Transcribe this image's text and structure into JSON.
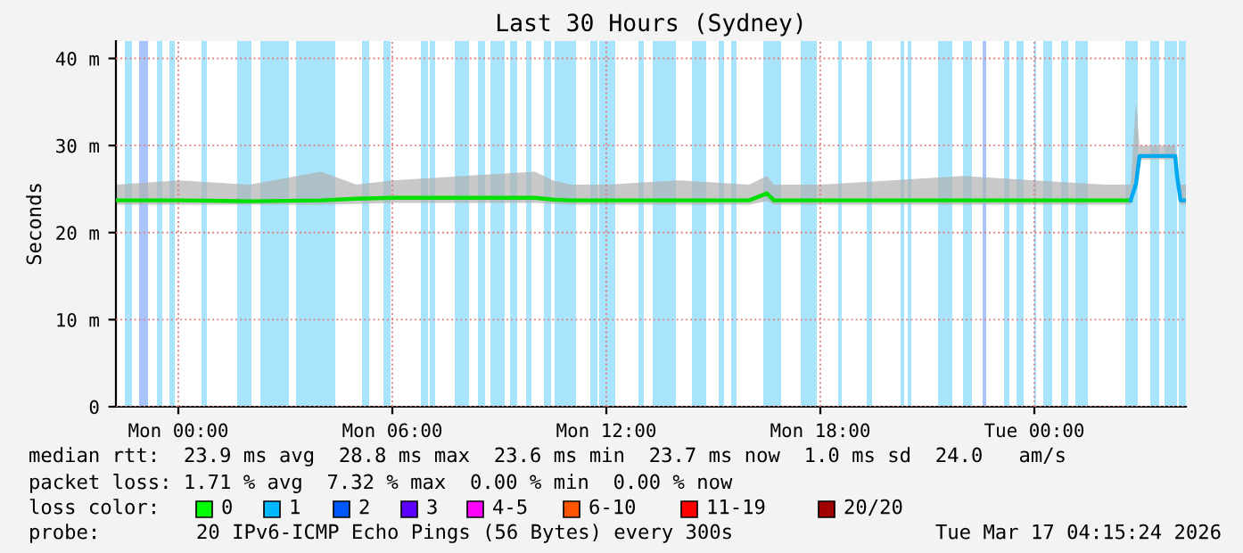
{
  "chart_data": {
    "type": "line",
    "title": "Last 30 Hours (Sydney)",
    "ylabel": "Seconds",
    "xlim": [
      "2026-03-15T22:15",
      "2026-03-17T04:15"
    ],
    "xticks": [
      {
        "value": "2026-03-16T00:00",
        "label": "Mon 00:00"
      },
      {
        "value": "2026-03-16T06:00",
        "label": "Mon 06:00"
      },
      {
        "value": "2026-03-16T12:00",
        "label": "Mon 12:00"
      },
      {
        "value": "2026-03-16T18:00",
        "label": "Mon 18:00"
      },
      {
        "value": "2026-03-17T00:00",
        "label": "Tue 00:00"
      }
    ],
    "ylim": [
      0,
      42
    ],
    "yticks": [
      0,
      {
        "value": 10,
        "label": "10 m"
      },
      {
        "value": 20,
        "label": "20 m"
      },
      {
        "value": 30,
        "label": "30 m"
      },
      {
        "value": 40,
        "label": "40 m"
      }
    ],
    "grid": true,
    "series": [
      {
        "color": "#00e000",
        "x": [
          "2026-03-15T22:15",
          "2026-03-16T00:00",
          "2026-03-16T02:00",
          "2026-03-16T04:00",
          "2026-03-16T05:00",
          "2026-03-16T06:00",
          "2026-03-16T08:00",
          "2026-03-16T10:00",
          "2026-03-16T10:30",
          "2026-03-16T11:00",
          "2026-03-16T12:00",
          "2026-03-16T14:00",
          "2026-03-16T16:00",
          "2026-03-16T16:30",
          "2026-03-16T16:42",
          "2026-03-16T18:00",
          "2026-03-16T20:00",
          "2026-03-16T22:00",
          "2026-03-17T00:00",
          "2026-03-17T02:00",
          "2026-03-17T02:42"
        ],
        "values": [
          23.7,
          23.7,
          23.6,
          23.7,
          23.9,
          24.0,
          24.0,
          24.0,
          23.8,
          23.7,
          23.7,
          23.7,
          23.7,
          24.5,
          23.7,
          23.7,
          23.7,
          23.7,
          23.7,
          23.7,
          23.7
        ],
        "lower": [
          23.2,
          23.2,
          23.2,
          23.2,
          23.3,
          23.4,
          23.4,
          23.4,
          23.3,
          23.2,
          23.2,
          23.2,
          23.2,
          23.6,
          23.2,
          23.2,
          23.2,
          23.2,
          23.2,
          23.2,
          23.2
        ],
        "upper": [
          25.5,
          26.0,
          25.5,
          27.0,
          25.5,
          26.0,
          26.5,
          27.0,
          26.0,
          25.5,
          25.5,
          26.0,
          25.5,
          26.5,
          25.5,
          25.5,
          26.0,
          26.5,
          26.0,
          25.5,
          25.5
        ]
      },
      {
        "color": "#00a8f0",
        "x": [
          "2026-03-17T02:42",
          "2026-03-17T02:51",
          "2026-03-17T02:57",
          "2026-03-17T03:30",
          "2026-03-17T03:57",
          "2026-03-17T04:00",
          "2026-03-17T04:06",
          "2026-03-17T04:15"
        ],
        "values": [
          23.7,
          25.6,
          28.8,
          28.8,
          28.8,
          26.5,
          23.7,
          23.7
        ],
        "lower": [
          23.2,
          25.0,
          28.4,
          28.4,
          28.4,
          26.0,
          23.2,
          23.2
        ],
        "upper": [
          25.5,
          35.0,
          30.0,
          30.0,
          30.0,
          28.0,
          25.5,
          25.5
        ]
      }
    ],
    "bands": [
      {
        "axis": "x",
        "from": "2026-03-15T22:30",
        "to": "2026-03-15T22:42",
        "color": "#a8e4fb"
      },
      {
        "axis": "x",
        "from": "2026-03-15T22:54",
        "to": "2026-03-15T23:09",
        "color": "#a8c4fb"
      },
      {
        "axis": "x",
        "from": "2026-03-15T23:24",
        "to": "2026-03-15T23:33",
        "color": "#a8e4fb"
      },
      {
        "axis": "x",
        "from": "2026-03-15T23:45",
        "to": "2026-03-15T23:54",
        "color": "#a8e4fb"
      },
      {
        "axis": "x",
        "from": "2026-03-16T00:39",
        "to": "2026-03-16T00:48",
        "color": "#a8e4fb"
      },
      {
        "axis": "x",
        "from": "2026-03-16T01:39",
        "to": "2026-03-16T02:03",
        "color": "#a8e4fb"
      },
      {
        "axis": "x",
        "from": "2026-03-16T02:18",
        "to": "2026-03-16T03:06",
        "color": "#a8e4fb"
      },
      {
        "axis": "x",
        "from": "2026-03-16T03:18",
        "to": "2026-03-16T04:24",
        "color": "#a8e4fb"
      },
      {
        "axis": "x",
        "from": "2026-03-16T05:09",
        "to": "2026-03-16T05:21",
        "color": "#a8e4fb"
      },
      {
        "axis": "x",
        "from": "2026-03-16T05:45",
        "to": "2026-03-16T05:57",
        "color": "#a8e4fb"
      },
      {
        "axis": "x",
        "from": "2026-03-16T06:48",
        "to": "2026-03-16T07:00",
        "color": "#a8e4fb"
      },
      {
        "axis": "x",
        "from": "2026-03-16T07:03",
        "to": "2026-03-16T07:12",
        "color": "#a8e4fb"
      },
      {
        "axis": "x",
        "from": "2026-03-16T07:45",
        "to": "2026-03-16T08:09",
        "color": "#a8e4fb"
      },
      {
        "axis": "x",
        "from": "2026-03-16T08:24",
        "to": "2026-03-16T08:36",
        "color": "#a8e4fb"
      },
      {
        "axis": "x",
        "from": "2026-03-16T08:45",
        "to": "2026-03-16T09:09",
        "color": "#a8e4fb"
      },
      {
        "axis": "x",
        "from": "2026-03-16T09:18",
        "to": "2026-03-16T09:30",
        "color": "#a8e4fb"
      },
      {
        "axis": "x",
        "from": "2026-03-16T09:45",
        "to": "2026-03-16T09:54",
        "color": "#a8e4fb"
      },
      {
        "axis": "x",
        "from": "2026-03-16T10:15",
        "to": "2026-03-16T10:27",
        "color": "#a8e4fb"
      },
      {
        "axis": "x",
        "from": "2026-03-16T10:33",
        "to": "2026-03-16T11:09",
        "color": "#a8e4fb"
      },
      {
        "axis": "x",
        "from": "2026-03-16T11:33",
        "to": "2026-03-16T11:45",
        "color": "#a8e4fb"
      },
      {
        "axis": "x",
        "from": "2026-03-16T11:48",
        "to": "2026-03-16T12:15",
        "color": "#a8e4fb"
      },
      {
        "axis": "x",
        "from": "2026-03-16T12:54",
        "to": "2026-03-16T13:03",
        "color": "#a8e4fb"
      },
      {
        "axis": "x",
        "from": "2026-03-16T13:18",
        "to": "2026-03-16T13:57",
        "color": "#a8e4fb"
      },
      {
        "axis": "x",
        "from": "2026-03-16T14:24",
        "to": "2026-03-16T14:48",
        "color": "#a8e4fb"
      },
      {
        "axis": "x",
        "from": "2026-03-16T15:09",
        "to": "2026-03-16T15:18",
        "color": "#a8e4fb"
      },
      {
        "axis": "x",
        "from": "2026-03-16T15:30",
        "to": "2026-03-16T15:39",
        "color": "#a8e4fb"
      },
      {
        "axis": "x",
        "from": "2026-03-16T16:24",
        "to": "2026-03-16T16:54",
        "color": "#a8e4fb"
      },
      {
        "axis": "x",
        "from": "2026-03-16T17:27",
        "to": "2026-03-16T17:54",
        "color": "#a8e4fb"
      },
      {
        "axis": "x",
        "from": "2026-03-16T18:30",
        "to": "2026-03-16T18:36",
        "color": "#a8e4fb"
      },
      {
        "axis": "x",
        "from": "2026-03-16T19:18",
        "to": "2026-03-16T19:27",
        "color": "#a8e4fb"
      },
      {
        "axis": "x",
        "from": "2026-03-16T20:15",
        "to": "2026-03-16T20:21",
        "color": "#a8e4fb"
      },
      {
        "axis": "x",
        "from": "2026-03-16T20:27",
        "to": "2026-03-16T20:33",
        "color": "#a8e4fb"
      },
      {
        "axis": "x",
        "from": "2026-03-16T21:18",
        "to": "2026-03-16T21:42",
        "color": "#a8e4fb"
      },
      {
        "axis": "x",
        "from": "2026-03-16T22:00",
        "to": "2026-03-16T22:15",
        "color": "#a8e4fb"
      },
      {
        "axis": "x",
        "from": "2026-03-16T22:33",
        "to": "2026-03-16T22:39",
        "color": "#a8c4fb"
      },
      {
        "axis": "x",
        "from": "2026-03-16T23:09",
        "to": "2026-03-16T23:18",
        "color": "#a8e4fb"
      },
      {
        "axis": "x",
        "from": "2026-03-16T23:30",
        "to": "2026-03-16T23:42",
        "color": "#a8e4fb"
      },
      {
        "axis": "x",
        "from": "2026-03-17T00:00",
        "to": "2026-03-17T00:03",
        "color": "#a8e4fb"
      },
      {
        "axis": "x",
        "from": "2026-03-17T00:15",
        "to": "2026-03-17T00:30",
        "color": "#a8e4fb"
      },
      {
        "axis": "x",
        "from": "2026-03-17T00:45",
        "to": "2026-03-17T00:57",
        "color": "#a8e4fb"
      },
      {
        "axis": "x",
        "from": "2026-03-17T01:09",
        "to": "2026-03-17T01:30",
        "color": "#a8e4fb"
      },
      {
        "axis": "x",
        "from": "2026-03-17T02:33",
        "to": "2026-03-17T02:54",
        "color": "#a8e4fb"
      },
      {
        "axis": "x",
        "from": "2026-03-17T03:15",
        "to": "2026-03-17T03:30",
        "color": "#a8e4fb"
      },
      {
        "axis": "x",
        "from": "2026-03-17T03:39",
        "to": "2026-03-17T04:00",
        "color": "#a8e4fb"
      },
      {
        "axis": "x",
        "from": "2026-03-17T04:03",
        "to": "2026-03-17T04:15",
        "color": "#a8e4fb"
      }
    ],
    "annotations": [
      "median rtt:  23.9 ms avg  28.8 ms max  23.6 ms min  23.7 ms now  1.0 ms sd  24.0   am/s",
      "packet loss: 1.71 % avg  7.32 % max  0.00 % min  0.00 % now",
      "loss color:",
      "0",
      "1",
      "2",
      "3",
      "4-5",
      "6-10",
      "11-19",
      "20/20",
      "probe:",
      "20 IPv6-ICMP Echo Pings (56 Bytes) every 300s",
      "Tue Mar 17 04:15:24 2026"
    ]
  }
}
